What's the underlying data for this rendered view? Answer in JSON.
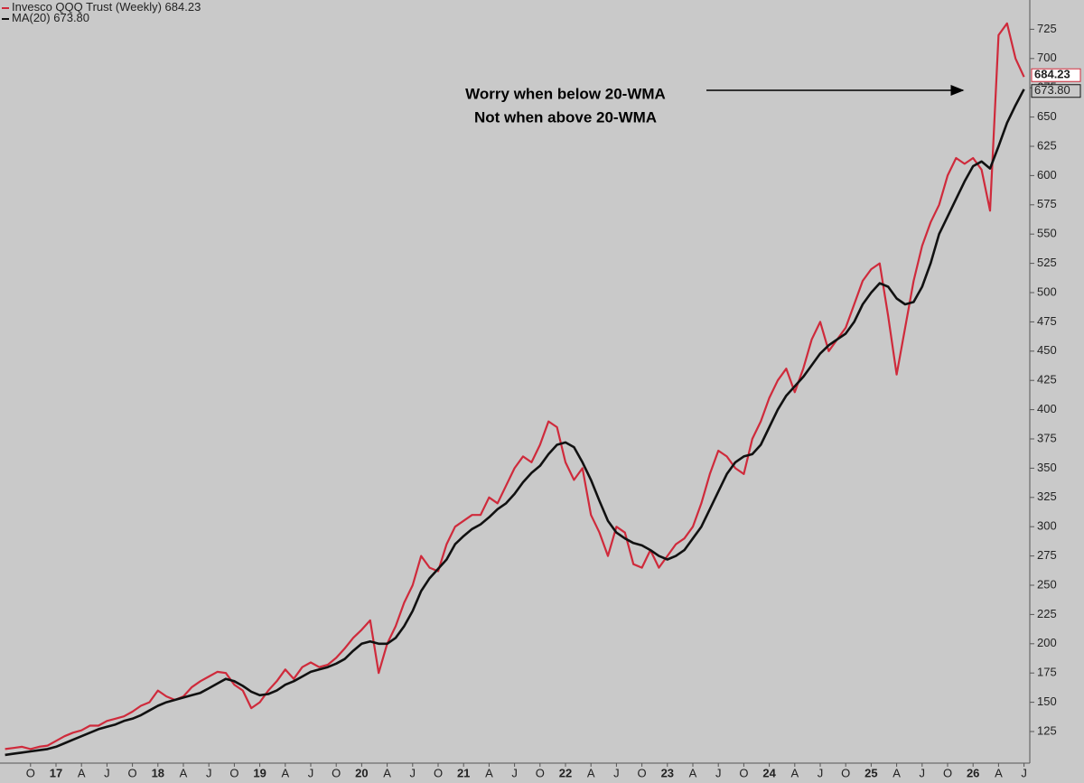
{
  "chart_data": {
    "type": "line",
    "categories": [
      null,
      null,
      null,
      "O",
      null,
      null,
      "17",
      null,
      null,
      "A",
      null,
      null,
      "J",
      null,
      null,
      "O",
      null,
      null,
      "18",
      null,
      null,
      "A",
      null,
      null,
      "J",
      null,
      null,
      "O",
      null,
      null,
      "19",
      null,
      null,
      "A",
      null,
      null,
      "J",
      null,
      null,
      "O",
      null,
      null,
      "20",
      null,
      null,
      "A",
      null,
      null,
      "J",
      null,
      null,
      "O",
      null,
      null,
      "21",
      null,
      null,
      "A",
      null,
      null,
      "J",
      null,
      null,
      "O",
      null,
      null,
      "22",
      null,
      null,
      "A",
      null,
      null,
      "J",
      null,
      null,
      "O",
      null,
      null,
      "23",
      null,
      null,
      "A",
      null,
      null,
      "J",
      null,
      null,
      "O",
      null,
      null,
      "24",
      null,
      null,
      "A",
      null,
      null,
      "J",
      null,
      null,
      "O",
      null,
      null,
      "25",
      null,
      null,
      "A",
      null,
      null,
      "J",
      null,
      null,
      "O",
      null,
      null,
      "26",
      null,
      null,
      "A",
      null,
      null,
      "J"
    ],
    "series": [
      {
        "name": "Invesco QQQ Trust (Weekly)",
        "color": "#cf2a3b",
        "values": [
          110,
          111,
          112,
          110,
          112,
          113,
          117,
          121,
          124,
          126,
          130,
          130,
          134,
          136,
          138,
          142,
          147,
          150,
          160,
          155,
          152,
          155,
          163,
          168,
          172,
          176,
          175,
          165,
          160,
          145,
          150,
          160,
          168,
          178,
          170,
          180,
          184,
          180,
          182,
          188,
          196,
          205,
          212,
          220,
          175,
          200,
          215,
          235,
          250,
          275,
          265,
          262,
          285,
          300,
          305,
          310,
          310,
          325,
          320,
          335,
          350,
          360,
          355,
          370,
          390,
          385,
          355,
          340,
          350,
          310,
          295,
          275,
          300,
          295,
          268,
          265,
          280,
          265,
          275,
          285,
          290,
          300,
          320,
          345,
          365,
          360,
          350,
          345,
          375,
          390,
          410,
          425,
          435,
          415,
          435,
          460,
          475,
          450,
          460,
          470,
          490,
          510,
          520,
          525,
          480,
          430,
          470,
          510,
          540,
          560,
          575,
          600,
          615,
          610,
          615,
          605,
          570,
          720,
          730,
          700,
          684.23
        ],
        "value_labels": [
          null,
          null,
          null,
          null,
          null,
          null,
          null,
          null,
          null,
          null,
          null,
          null,
          null,
          null,
          null,
          null,
          null,
          null,
          null,
          null,
          null,
          null,
          null,
          null,
          null,
          null,
          null,
          null,
          null,
          null,
          null,
          null,
          null,
          null,
          null,
          null,
          null,
          null,
          null,
          null,
          null,
          null,
          null,
          null,
          null,
          null,
          null,
          null,
          null,
          null,
          null,
          null,
          null,
          null,
          null,
          null,
          null,
          null,
          null,
          null,
          null,
          null,
          null,
          null,
          null,
          null,
          null,
          null,
          null,
          null,
          null,
          null,
          null,
          null,
          null,
          null,
          null,
          null,
          null,
          null,
          null,
          null,
          null,
          null,
          null,
          null,
          null,
          null,
          null,
          null,
          null,
          null,
          null,
          null,
          null,
          null,
          null,
          null,
          null,
          null,
          null,
          null,
          null,
          null,
          null,
          null,
          null,
          null,
          null,
          null,
          null,
          null,
          null,
          null,
          null,
          null,
          null,
          null,
          null,
          null,
          "684.23"
        ]
      },
      {
        "name": "MA(20)",
        "color": "#111111",
        "values": [
          105,
          106,
          107,
          108,
          109,
          110,
          112,
          115,
          118,
          121,
          124,
          127,
          129,
          131,
          134,
          136,
          139,
          143,
          147,
          150,
          152,
          154,
          156,
          158,
          162,
          166,
          170,
          168,
          164,
          159,
          156,
          157,
          160,
          165,
          168,
          172,
          176,
          178,
          180,
          183,
          187,
          194,
          200,
          202,
          200,
          200,
          205,
          215,
          228,
          245,
          256,
          264,
          272,
          285,
          292,
          298,
          302,
          308,
          315,
          320,
          328,
          338,
          346,
          352,
          362,
          370,
          372,
          368,
          355,
          340,
          322,
          305,
          295,
          290,
          286,
          284,
          280,
          275,
          272,
          275,
          280,
          290,
          300,
          315,
          330,
          345,
          355,
          360,
          362,
          370,
          385,
          400,
          412,
          420,
          428,
          438,
          448,
          455,
          460,
          465,
          475,
          490,
          500,
          508,
          505,
          495,
          490,
          492,
          505,
          525,
          550,
          565,
          580,
          595,
          608,
          612,
          606,
          625,
          645,
          660,
          673.8
        ],
        "value_labels": [
          null,
          null,
          null,
          null,
          null,
          null,
          null,
          null,
          null,
          null,
          null,
          null,
          null,
          null,
          null,
          null,
          null,
          null,
          null,
          null,
          null,
          null,
          null,
          null,
          null,
          null,
          null,
          null,
          null,
          null,
          null,
          null,
          null,
          null,
          null,
          null,
          null,
          null,
          null,
          null,
          null,
          null,
          null,
          null,
          null,
          null,
          null,
          null,
          null,
          null,
          null,
          null,
          null,
          null,
          null,
          null,
          null,
          null,
          null,
          null,
          null,
          null,
          null,
          null,
          null,
          null,
          null,
          null,
          null,
          null,
          null,
          null,
          null,
          null,
          null,
          null,
          null,
          null,
          null,
          null,
          null,
          null,
          null,
          null,
          null,
          null,
          null,
          null,
          null,
          null,
          null,
          null,
          null,
          null,
          null,
          null,
          null,
          null,
          null,
          null,
          null,
          null,
          null,
          null,
          null,
          null,
          null,
          null,
          null,
          null,
          null,
          null,
          null,
          null,
          null,
          null,
          null,
          null,
          null,
          null,
          "673.80"
        ]
      }
    ],
    "ylim": [
      98,
      750
    ],
    "yticks": [
      125,
      150,
      175,
      200,
      225,
      250,
      275,
      300,
      325,
      350,
      375,
      400,
      425,
      450,
      475,
      500,
      525,
      550,
      575,
      600,
      625,
      650,
      675,
      700,
      725
    ],
    "grid": false,
    "legend": "top-left",
    "annotations": [
      "Worry when below 20-WMA",
      "Not when above 20-WMA"
    ]
  }
}
